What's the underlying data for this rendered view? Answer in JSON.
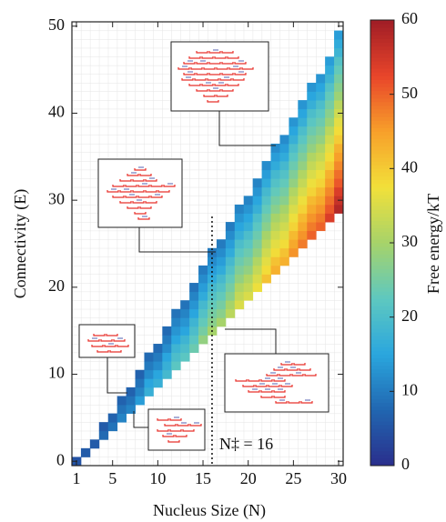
{
  "chart_data": {
    "type": "heatmap",
    "x_label": "Nucleus Size (N)",
    "y_label": "Connectivity (E)",
    "colorbar_label": "Free energy/kT",
    "xlim": [
      0.5,
      30.5
    ],
    "ylim": [
      -0.5,
      50.5
    ],
    "xticks": [
      1,
      5,
      10,
      15,
      20,
      25,
      30
    ],
    "yticks": [
      0,
      10,
      20,
      30,
      40,
      50
    ],
    "clim": [
      0,
      60
    ],
    "cticks": [
      0,
      10,
      20,
      30,
      40,
      50,
      60
    ],
    "colormap": [
      "#2a2e8c",
      "#2166b0",
      "#2aa6de",
      "#5ec8c0",
      "#a6d36a",
      "#f2e03a",
      "#f7a02a",
      "#e8452a",
      "#a01d26"
    ],
    "grid": true,
    "annotation": {
      "x": 16,
      "label": "N‡ = 16"
    },
    "columns": [
      {
        "n": 1,
        "e_min": 0,
        "values": [
          5
        ]
      },
      {
        "n": 2,
        "e_min": 1,
        "values": [
          6
        ]
      },
      {
        "n": 3,
        "e_min": 2,
        "values": [
          6
        ]
      },
      {
        "n": 4,
        "e_min": 3,
        "values": [
          8,
          6
        ]
      },
      {
        "n": 5,
        "e_min": 4,
        "values": [
          9,
          7
        ]
      },
      {
        "n": 6,
        "e_min": 5,
        "values": [
          11,
          9,
          7
        ]
      },
      {
        "n": 7,
        "e_min": 6,
        "values": [
          11,
          9,
          7
        ]
      },
      {
        "n": 8,
        "e_min": 7,
        "values": [
          14,
          11,
          9,
          7
        ]
      },
      {
        "n": 9,
        "e_min": 8,
        "values": [
          17,
          15,
          12,
          10,
          8
        ]
      },
      {
        "n": 10,
        "e_min": 9,
        "values": [
          17,
          15,
          12,
          10,
          8
        ]
      },
      {
        "n": 11,
        "e_min": 10,
        "values": [
          19,
          17,
          15,
          12,
          10,
          8
        ]
      },
      {
        "n": 12,
        "e_min": 11,
        "values": [
          22,
          20,
          18,
          15,
          13,
          11,
          9
        ]
      },
      {
        "n": 13,
        "e_min": 12,
        "values": [
          22,
          20,
          18,
          15,
          13,
          11,
          9
        ]
      },
      {
        "n": 14,
        "e_min": 13,
        "values": [
          24,
          22,
          20,
          18,
          15,
          13,
          11,
          9
        ]
      },
      {
        "n": 15,
        "e_min": 14,
        "values": [
          28,
          25,
          23,
          21,
          19,
          16,
          14,
          12,
          10
        ]
      },
      {
        "n": 16,
        "e_min": 15,
        "values": [
          30,
          27,
          25,
          23,
          21,
          19,
          16,
          14,
          12,
          10
        ]
      },
      {
        "n": 17,
        "e_min": 16,
        "values": [
          30,
          27,
          25,
          23,
          21,
          19,
          16,
          14,
          12,
          10
        ]
      },
      {
        "n": 18,
        "e_min": 17,
        "values": [
          32,
          30,
          27,
          25,
          23,
          21,
          19,
          16,
          14,
          12,
          10
        ]
      },
      {
        "n": 19,
        "e_min": 18,
        "values": [
          35,
          33,
          31,
          28,
          26,
          24,
          22,
          20,
          17,
          15,
          13,
          11
        ]
      },
      {
        "n": 20,
        "e_min": 19,
        "values": [
          35,
          33,
          31,
          28,
          26,
          24,
          22,
          20,
          17,
          15,
          13,
          11
        ]
      },
      {
        "n": 21,
        "e_min": 20,
        "values": [
          37,
          35,
          33,
          31,
          28,
          26,
          24,
          22,
          20,
          17,
          15,
          13,
          11
        ]
      },
      {
        "n": 22,
        "e_min": 21,
        "values": [
          41,
          38,
          36,
          34,
          32,
          30,
          27,
          25,
          23,
          21,
          19,
          16,
          14,
          12
        ]
      },
      {
        "n": 23,
        "e_min": 22,
        "values": [
          43,
          41,
          38,
          36,
          34,
          32,
          30,
          27,
          25,
          23,
          21,
          19,
          16,
          14,
          12
        ]
      },
      {
        "n": 24,
        "e_min": 23,
        "values": [
          43,
          41,
          38,
          36,
          34,
          32,
          30,
          27,
          25,
          23,
          21,
          19,
          16,
          14,
          12
        ]
      },
      {
        "n": 25,
        "e_min": 24,
        "values": [
          46,
          44,
          42,
          39,
          37,
          35,
          33,
          31,
          28,
          26,
          24,
          22,
          20,
          17,
          15,
          13
        ]
      },
      {
        "n": 26,
        "e_min": 25,
        "values": [
          48,
          46,
          44,
          42,
          39,
          37,
          35,
          33,
          31,
          28,
          26,
          24,
          22,
          20,
          17,
          15,
          13
        ]
      },
      {
        "n": 27,
        "e_min": 26,
        "values": [
          50,
          48,
          46,
          44,
          42,
          39,
          37,
          35,
          33,
          31,
          28,
          26,
          24,
          22,
          20,
          17,
          15,
          13
        ]
      },
      {
        "n": 28,
        "e_min": 27,
        "values": [
          50,
          48,
          46,
          44,
          42,
          39,
          37,
          35,
          33,
          31,
          28,
          26,
          24,
          22,
          20,
          17,
          15,
          13
        ]
      },
      {
        "n": 29,
        "e_min": 28,
        "values": [
          54,
          51,
          49,
          47,
          45,
          43,
          40,
          38,
          36,
          34,
          32,
          29,
          27,
          25,
          23,
          21,
          18,
          16,
          14
        ]
      },
      {
        "n": 30,
        "e_min": 29,
        "values": [
          58,
          56,
          54,
          51,
          49,
          47,
          45,
          43,
          40,
          38,
          36,
          34,
          32,
          29,
          27,
          25,
          23,
          21,
          18,
          16,
          14
        ]
      }
    ]
  }
}
